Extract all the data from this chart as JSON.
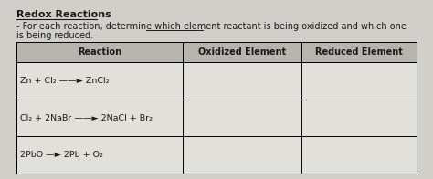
{
  "title": "Redox Reactions",
  "subtitle_line1": "- For each reaction, determine which element reactant is being oxidized and which one",
  "subtitle_line2": "is being reduced.",
  "underline_word": "element reactant",
  "col_headers": [
    "Reaction",
    "Oxidized Element",
    "Reduced Element"
  ],
  "reactions": [
    "Zn + Cl₂ ——► ZnCl₂",
    "Cl₂ + 2NaBr ——► 2NaCl + Br₂",
    "2PbO —► 2Pb + O₂"
  ],
  "fig_bg": "#d0cfc9",
  "header_bg": "#b8b5ae",
  "cell_bg": "#e2e0db",
  "text_color": "#1a1a1a",
  "title_fontsize": 8,
  "subtitle_fontsize": 7,
  "table_fontsize": 6.8,
  "header_fontsize": 7
}
